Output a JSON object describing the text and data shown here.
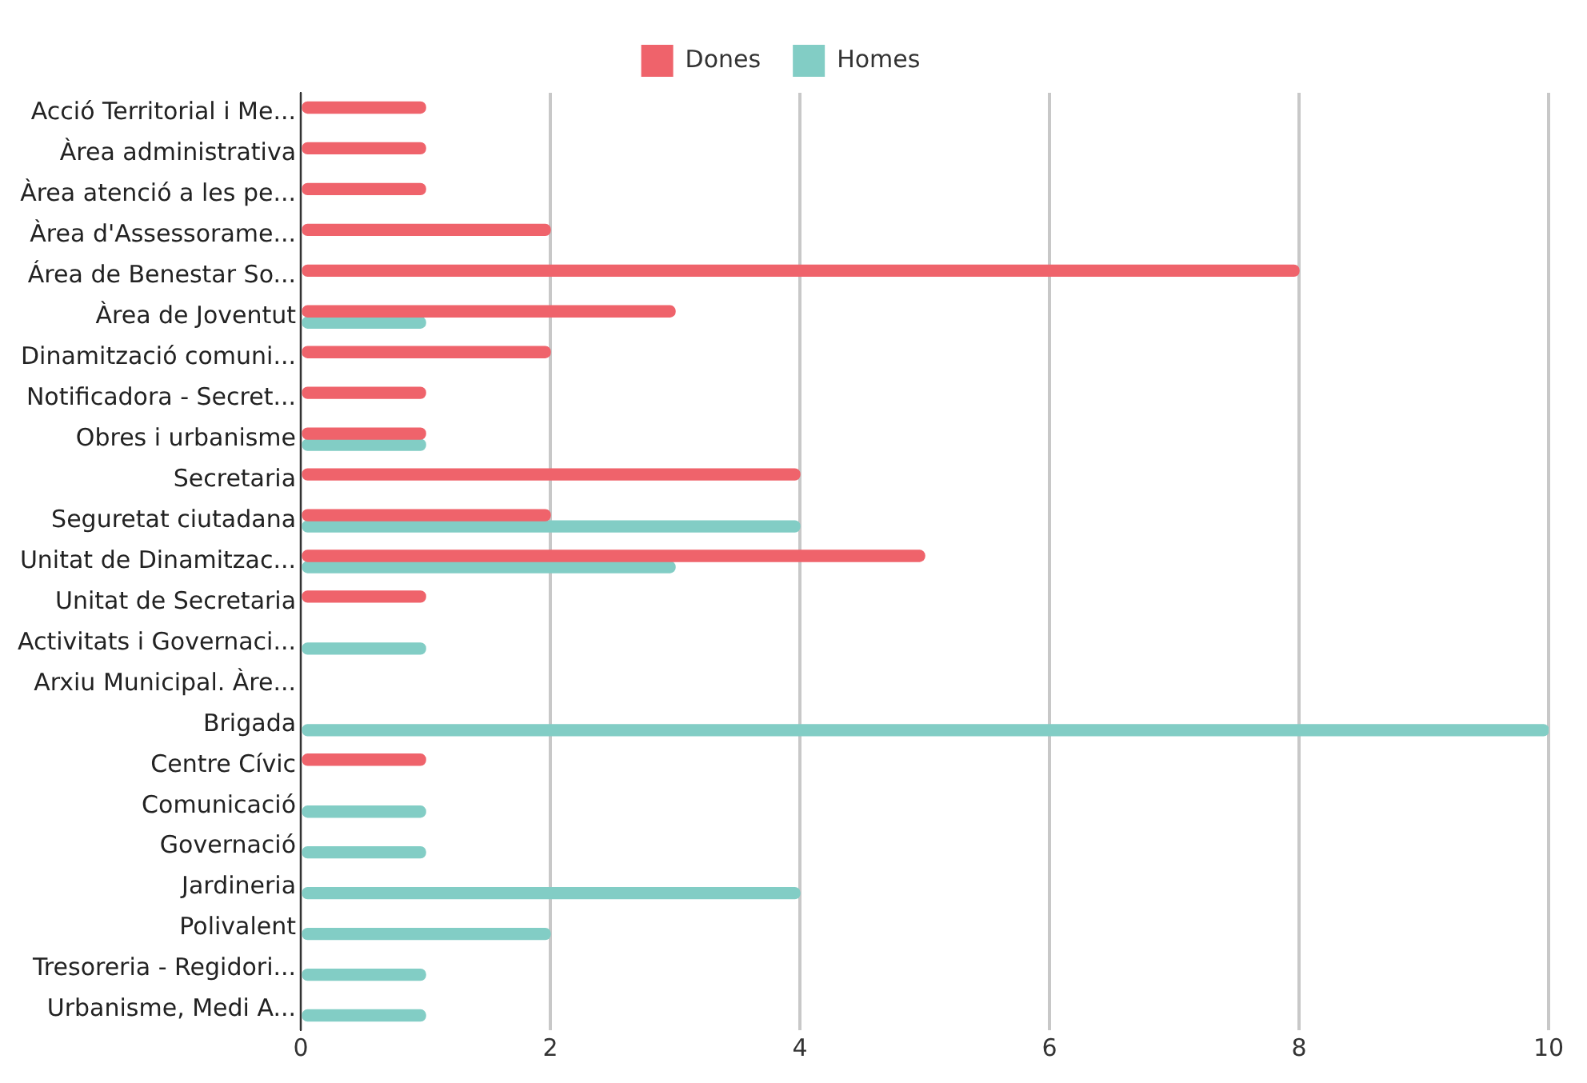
{
  "chart_data": {
    "type": "bar",
    "orientation": "horizontal",
    "categories": [
      "Acció Territorial i Me...",
      "Àrea administrativa",
      "Àrea atenció a les pe...",
      "Àrea d'Assessorame...",
      "Área de Benestar So...",
      "Àrea de Joventut",
      "Dinamització comuni...",
      "Notificadora - Secret...",
      "Obres i urbanisme",
      "Secretaria",
      "Seguretat ciutadana",
      "Unitat de Dinamitzac...",
      "Unitat de Secretaria",
      "Activitats i Governaci...",
      "Arxiu Municipal. Àre...",
      "Brigada",
      "Centre Cívic",
      "Comunicació",
      "Governació",
      "Jardineria",
      "Polivalent",
      "Tresoreria - Regidori...",
      "Urbanisme, Medi A..."
    ],
    "series": [
      {
        "name": "Dones",
        "color": "#ef636b",
        "values": [
          1,
          1,
          1,
          2,
          8,
          3,
          2,
          1,
          1,
          4,
          2,
          5,
          1,
          null,
          null,
          null,
          1,
          null,
          null,
          null,
          null,
          null,
          null
        ]
      },
      {
        "name": "Homes",
        "color": "#82cdc5",
        "values": [
          null,
          null,
          null,
          null,
          null,
          1,
          null,
          null,
          1,
          null,
          4,
          3,
          null,
          1,
          null,
          10,
          null,
          1,
          1,
          4,
          2,
          1,
          1
        ]
      }
    ],
    "xlim": [
      0,
      10
    ],
    "xticks": [
      0,
      2,
      4,
      6,
      8,
      10
    ],
    "grid": "x",
    "legend": "top"
  }
}
